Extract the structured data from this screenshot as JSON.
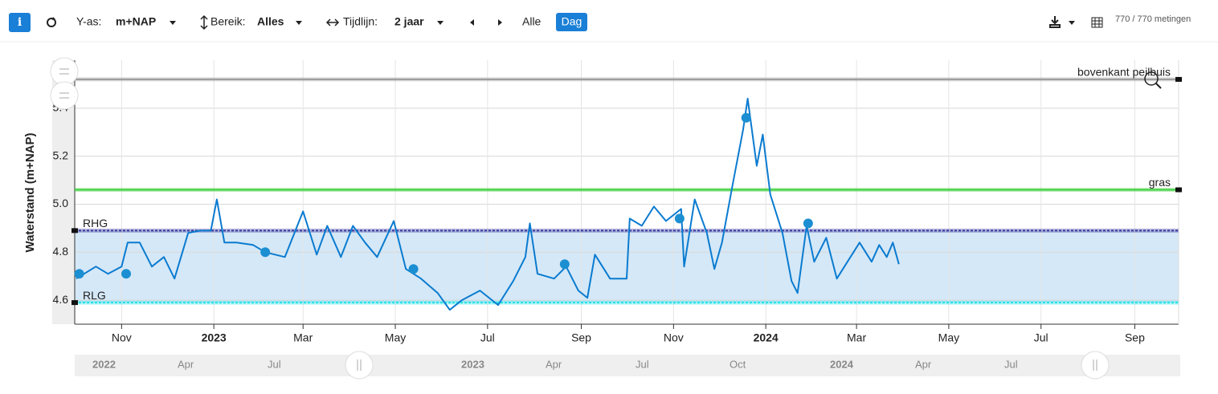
{
  "toolbar": {
    "y_axis_label": "Y-as:",
    "y_axis_value": "m+NAP",
    "range_label": "Bereik:",
    "range_value": "Alles",
    "timeline_label": "Tijdlijn:",
    "timeline_value": "2 jaar",
    "all": "Alle",
    "day": "Dag",
    "count": "770 / 770 metingen"
  },
  "chart_data": {
    "type": "line",
    "y_label": "Waterstand (m+NAP)",
    "ylim": [
      4.5,
      5.6
    ],
    "yticks": [
      4.6,
      4.8,
      {
        "value": 5,
        "label": "5.0"
      },
      5.2,
      5.4
    ],
    "xlim": [
      "2022-10-01",
      "2024-09-30"
    ],
    "xticks": [
      {
        "value": "2022-11-01",
        "label": "Nov"
      },
      {
        "value": "2023-01-01",
        "label": "2023"
      },
      {
        "value": "2023-03-01",
        "label": "Mar"
      },
      {
        "value": "2023-05-01",
        "label": "May"
      },
      {
        "value": "2023-07-01",
        "label": "Jul"
      },
      {
        "value": "2023-09-01",
        "label": "Sep"
      },
      {
        "value": "2023-11-01",
        "label": "Nov"
      },
      {
        "value": "2024-01-01",
        "label": "2024"
      },
      {
        "value": "2024-03-01",
        "label": "Mar"
      },
      {
        "value": "2024-05-01",
        "label": "May"
      },
      {
        "value": "2024-07-01",
        "label": "Jul"
      },
      {
        "value": "2024-09-01",
        "label": "Sep"
      }
    ],
    "grid": true,
    "band_color": "#d5e8f7",
    "reference_lines": [
      {
        "label": "bovenkant peilbuis",
        "value": 5.52,
        "color": "#9a9a9a",
        "label_side": "right"
      },
      {
        "label": "gras",
        "value": 5.06,
        "color": "#3ccf3c",
        "label_side": "right"
      },
      {
        "label": "RHG",
        "value": 4.89,
        "color": "#3a3aa0",
        "label_side": "left"
      },
      {
        "label": "RLG",
        "value": 4.59,
        "color": "#27e0e6",
        "label_side": "left"
      }
    ],
    "series": [
      {
        "color": "#0a7bd0",
        "mode": "line",
        "x": [
          "2022-10-02",
          "2022-10-15",
          "2022-10-23",
          "2022-11-01",
          "2022-11-05",
          "2022-11-13",
          "2022-11-21",
          "2022-11-29",
          "2022-12-06",
          "2022-12-15",
          "2022-12-23",
          "2022-12-30",
          "2023-01-03",
          "2023-01-08",
          "2023-01-16",
          "2023-01-27",
          "2023-02-04",
          "2023-02-17",
          "2023-03-01",
          "2023-03-10",
          "2023-03-17",
          "2023-03-26",
          "2023-04-03",
          "2023-04-11",
          "2023-04-19",
          "2023-04-30",
          "2023-05-08",
          "2023-05-18",
          "2023-05-29",
          "2023-06-06",
          "2023-06-14",
          "2023-06-26",
          "2023-07-08",
          "2023-07-18",
          "2023-07-26",
          "2023-07-29",
          "2023-08-03",
          "2023-08-14",
          "2023-08-22",
          "2023-08-30",
          "2023-09-05",
          "2023-09-10",
          "2023-09-20",
          "2023-10-01",
          "2023-10-03",
          "2023-10-11",
          "2023-10-19",
          "2023-10-27",
          "2023-11-06",
          "2023-11-08",
          "2023-11-15",
          "2023-11-23",
          "2023-11-28",
          "2023-12-03",
          "2023-12-10",
          "2023-12-17",
          "2023-12-20",
          "2023-12-26",
          "2023-12-30",
          "2024-01-04",
          "2024-01-12",
          "2024-01-18",
          "2024-01-22",
          "2024-01-28",
          "2024-02-02",
          "2024-02-10",
          "2024-02-17",
          "2024-02-24",
          "2024-03-03",
          "2024-03-11",
          "2024-03-16",
          "2024-03-21",
          "2024-03-25",
          "2024-03-29"
        ],
        "values": [
          4.69,
          4.74,
          4.71,
          4.74,
          4.84,
          4.84,
          4.74,
          4.78,
          4.69,
          4.88,
          4.89,
          4.89,
          5.02,
          4.84,
          4.84,
          4.83,
          4.8,
          4.78,
          4.97,
          4.79,
          4.91,
          4.78,
          4.91,
          4.84,
          4.78,
          4.93,
          4.73,
          4.69,
          4.63,
          4.56,
          4.6,
          4.64,
          4.58,
          4.68,
          4.78,
          4.92,
          4.71,
          4.69,
          4.74,
          4.64,
          4.61,
          4.79,
          4.69,
          4.69,
          4.94,
          4.91,
          4.99,
          4.93,
          4.98,
          4.74,
          5.02,
          4.88,
          4.73,
          4.84,
          5.08,
          5.31,
          5.44,
          5.16,
          5.29,
          5.04,
          4.88,
          4.68,
          4.63,
          4.91,
          4.76,
          4.86,
          4.69,
          4.76,
          4.84,
          4.76,
          4.83,
          4.78,
          4.84,
          4.75
        ]
      },
      {
        "color": "#1b8fd2",
        "mode": "markers",
        "x": [
          "2022-10-04",
          "2022-11-04",
          "2023-02-04",
          "2023-05-13",
          "2023-08-21",
          "2023-11-05",
          "2023-12-19",
          "2024-01-29"
        ],
        "values": [
          4.71,
          4.71,
          4.8,
          4.73,
          4.75,
          4.94,
          5.36,
          4.92
        ]
      }
    ],
    "navigator_labels": [
      "2022",
      "Apr",
      "Jul",
      "2023",
      "Apr",
      "Jul",
      "Oct",
      "2024",
      "Apr",
      "Jul"
    ]
  }
}
